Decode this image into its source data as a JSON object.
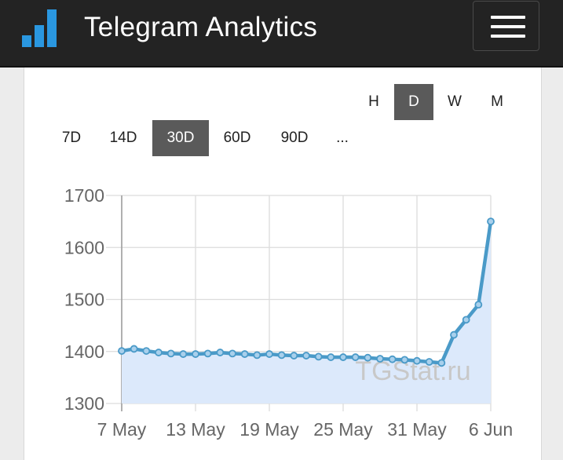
{
  "header": {
    "title": "Telegram Analytics",
    "menu_icon": "hamburger-menu-icon",
    "logo_icon": "bar-chart-logo-icon"
  },
  "granularity": {
    "options": [
      "H",
      "D",
      "W",
      "M"
    ],
    "selected": "D"
  },
  "range": {
    "options": [
      "7D",
      "14D",
      "30D",
      "60D",
      "90D",
      "..."
    ],
    "selected": "30D"
  },
  "colors": {
    "line": "#4a9ac8",
    "fill": "#dce9fb",
    "marker_fill": "#a9d0ec",
    "active_button": "#5a5a5a",
    "header_bg": "#232323",
    "logo": "#2a97e0"
  },
  "chart_data": {
    "type": "area",
    "x": [
      "7 May",
      "8 May",
      "9 May",
      "10 May",
      "11 May",
      "12 May",
      "13 May",
      "14 May",
      "15 May",
      "16 May",
      "17 May",
      "18 May",
      "19 May",
      "20 May",
      "21 May",
      "22 May",
      "23 May",
      "24 May",
      "25 May",
      "26 May",
      "27 May",
      "28 May",
      "29 May",
      "30 May",
      "31 May",
      "1 Jun",
      "2 Jun",
      "3 Jun",
      "4 Jun",
      "5 Jun",
      "6 Jun"
    ],
    "series": [
      {
        "values": [
          1401,
          1405,
          1401,
          1398,
          1396,
          1395,
          1395,
          1396,
          1398,
          1396,
          1395,
          1393,
          1395,
          1393,
          1392,
          1392,
          1390,
          1389,
          1389,
          1389,
          1388,
          1386,
          1385,
          1384,
          1382,
          1380,
          1378,
          1432,
          1461,
          1490,
          1650
        ]
      }
    ],
    "xticks": [
      "7 May",
      "13 May",
      "19 May",
      "25 May",
      "31 May",
      "6 Jun"
    ],
    "yticks": [
      1300,
      1400,
      1500,
      1600,
      1700
    ],
    "ylim": [
      1300,
      1700
    ],
    "grid": true,
    "watermark": "TGStat.ru"
  }
}
